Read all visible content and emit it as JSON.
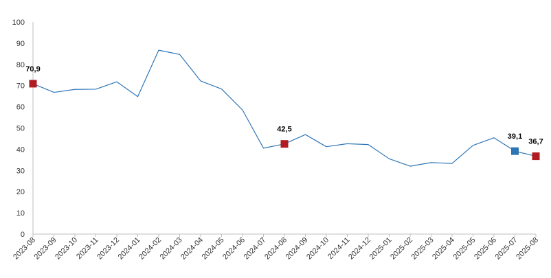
{
  "chart_data": {
    "type": "line",
    "title": "",
    "xlabel": "",
    "ylabel": "",
    "ylim": [
      0,
      100
    ],
    "yticks": [
      0,
      10,
      20,
      30,
      40,
      50,
      60,
      70,
      80,
      90,
      100
    ],
    "grid": false,
    "categories": [
      "2023-08",
      "2023-09",
      "2023-10",
      "2023-11",
      "2023-12",
      "2024-01",
      "2024-02",
      "2024-03",
      "2024-04",
      "2024-05",
      "2024-06",
      "2024-07",
      "2024-08",
      "2024-09",
      "2024-10",
      "2024-11",
      "2024-12",
      "2025-01",
      "2025-02",
      "2025-03",
      "2025-04",
      "2025-05",
      "2025-06",
      "2025-07",
      "2025-08"
    ],
    "series": [
      {
        "values": [
          70.9,
          66.8,
          68.2,
          68.3,
          71.8,
          64.8,
          86.7,
          84.7,
          72.2,
          68.4,
          58.5,
          40.5,
          42.5,
          46.9,
          41.2,
          42.6,
          42.2,
          35.5,
          32.0,
          33.7,
          33.3,
          41.8,
          45.4,
          39.1,
          36.7
        ],
        "color": "#2e75b6"
      }
    ],
    "markers": [
      {
        "index": 0,
        "label": "70,9",
        "color": "#b01c22"
      },
      {
        "index": 12,
        "label": "42,5",
        "color": "#b01c22"
      },
      {
        "index": 23,
        "label": "39,1",
        "color": "#2e75b6"
      },
      {
        "index": 24,
        "label": "36,7",
        "color": "#b01c22"
      }
    ],
    "axis_color": "#bfbfbf"
  }
}
